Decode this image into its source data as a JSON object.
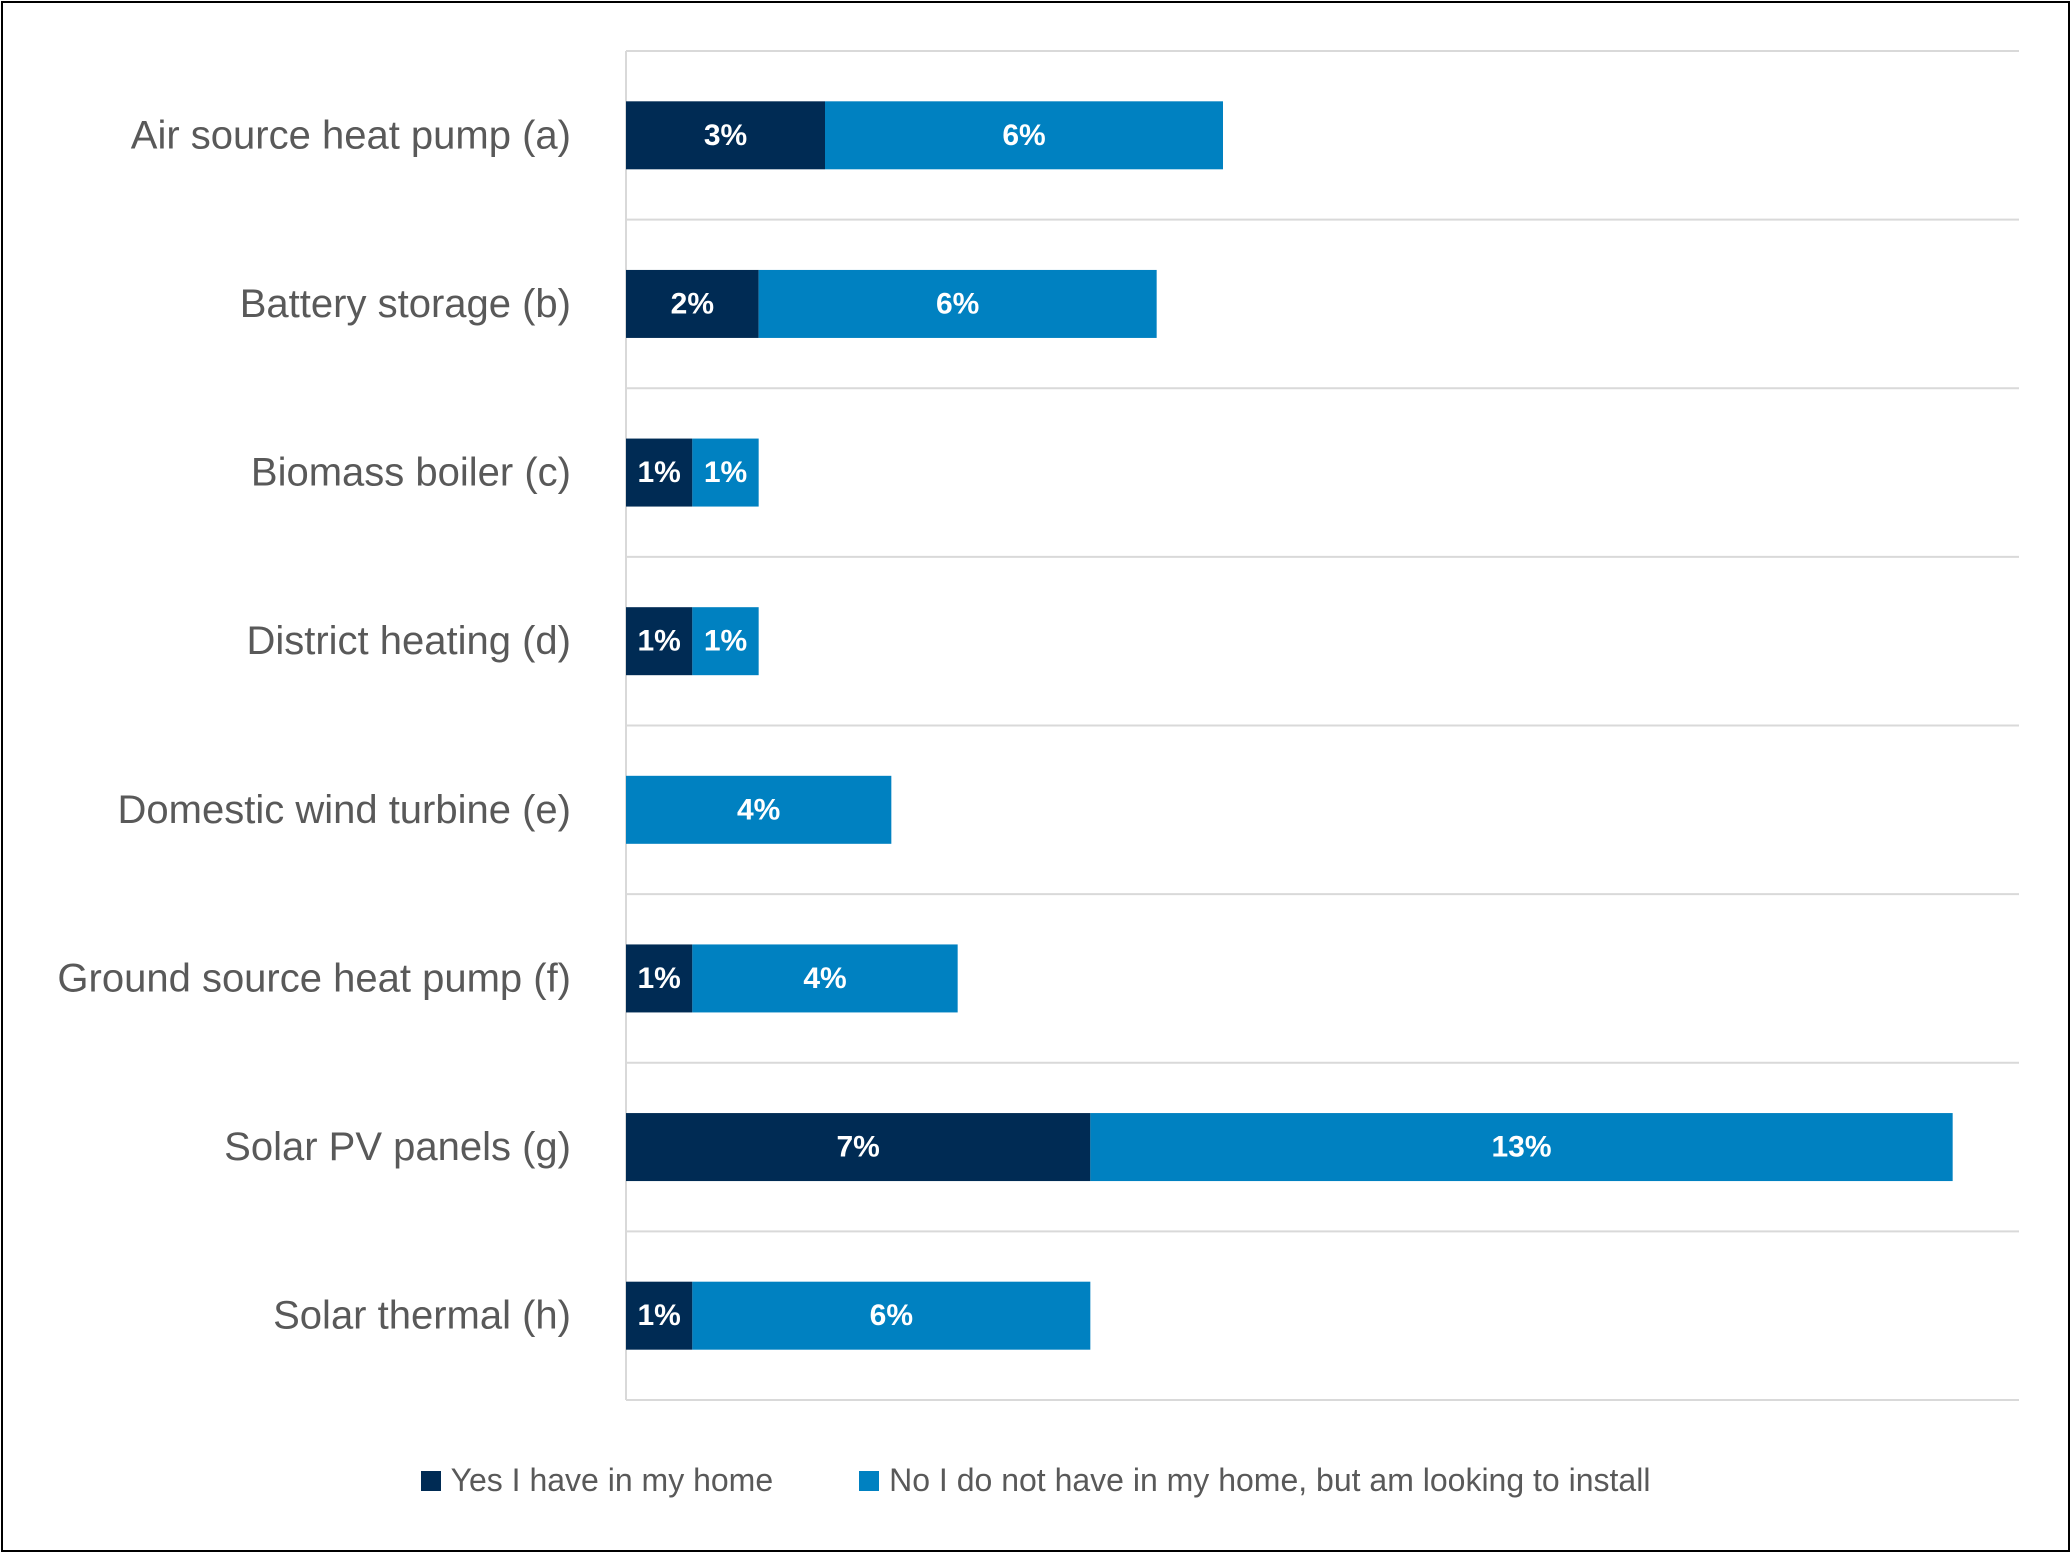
{
  "chart_data": {
    "type": "bar",
    "orientation": "horizontal",
    "stacked": true,
    "categories": [
      "Air source heat pump (a)",
      "Battery storage (b)",
      "Biomass boiler (c)",
      "District heating (d)",
      "Domestic wind turbine (e)",
      "Ground source heat pump (f)",
      "Solar PV panels (g)",
      "Solar thermal (h)"
    ],
    "series": [
      {
        "name": "Yes I have in my home",
        "values": [
          3,
          2,
          1,
          1,
          0,
          1,
          7,
          1
        ],
        "labels": [
          "3%",
          "2%",
          "1%",
          "1%",
          "",
          "1%",
          "7%",
          "1%"
        ],
        "color": "#002b54"
      },
      {
        "name": "No I do not have in my home, but am looking to install",
        "values": [
          6,
          6,
          1,
          1,
          4,
          4,
          13,
          6
        ],
        "labels": [
          "6%",
          "6%",
          "1%",
          "1%",
          "4%",
          "4%",
          "13%",
          "6%"
        ],
        "color": "#0081c1"
      }
    ],
    "xlim": [
      0,
      21
    ],
    "grid": true,
    "legend_position": "bottom",
    "data_label_color": "#ffffff",
    "category_label_color": "#595959",
    "grid_color": "#d9d9d9"
  }
}
